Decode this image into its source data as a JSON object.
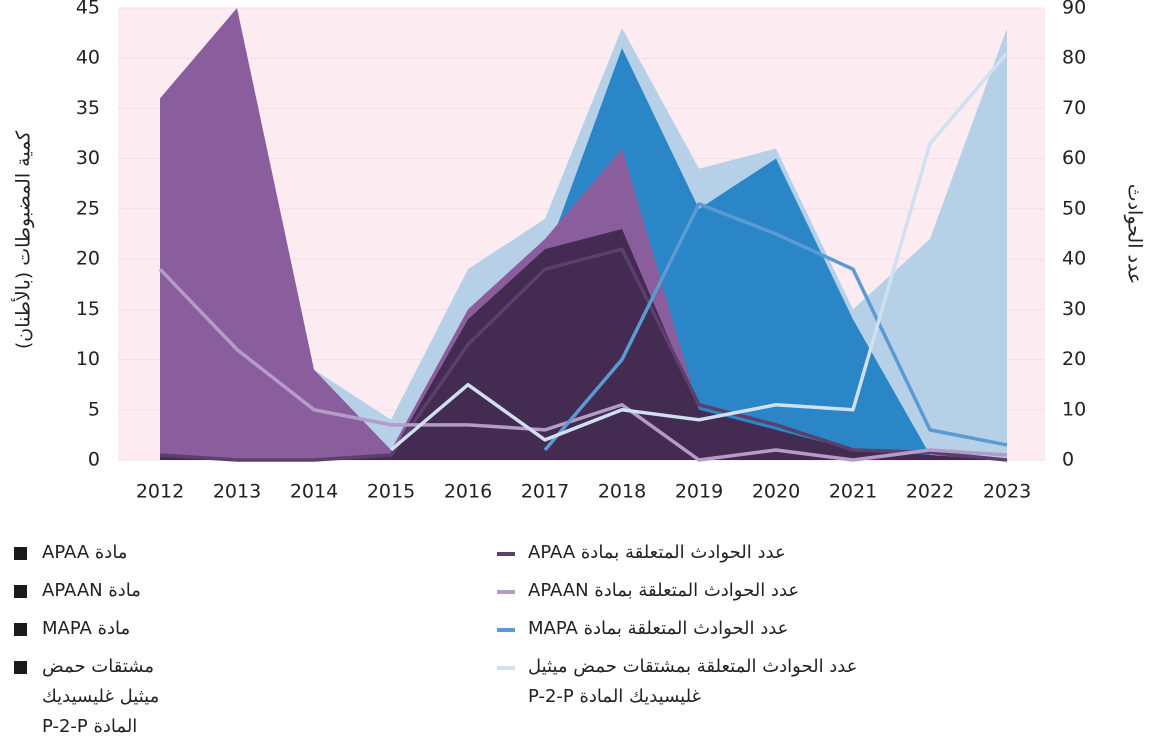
{
  "chart_data": {
    "type": "area",
    "y_label": "كمية المضبوطات (بالأطنان)",
    "y2_label": "عدد الحوادث",
    "categories": [
      "2012",
      "2013",
      "2014",
      "2015",
      "2016",
      "2017",
      "2018",
      "2019",
      "2020",
      "2021",
      "2022",
      "2023"
    ],
    "ylim": [
      0,
      45
    ],
    "yticks": [
      0,
      5,
      10,
      15,
      20,
      25,
      30,
      35,
      40,
      45
    ],
    "y2lim": [
      0,
      90
    ],
    "y2ticks": [
      0,
      10,
      20,
      30,
      40,
      50,
      60,
      70,
      80,
      90
    ],
    "series": [
      {
        "name": "مادة APAA",
        "type": "area",
        "color": "#432b52",
        "values": [
          0.5,
          0,
          0,
          0.5,
          14,
          21,
          23,
          5,
          3,
          1,
          0.5,
          0
        ]
      },
      {
        "name": "مادة APAAN",
        "type": "area",
        "color": "#8a5e9c",
        "values": [
          36,
          45,
          9,
          1,
          15,
          22,
          31,
          5,
          2,
          0.5,
          0,
          0
        ]
      },
      {
        "name": "مادة MAPA",
        "type": "area",
        "color": "#2a86c6",
        "values": [
          0,
          0,
          0,
          0,
          0,
          20,
          41,
          25,
          30,
          14,
          0.5,
          0
        ]
      },
      {
        "name": "مشتقات حمض ميثيل غليسيديك المادة P-2-P",
        "type": "area",
        "color": "#b5d0e7",
        "values": [
          0,
          0,
          9,
          4,
          19,
          24,
          43,
          29,
          31,
          15,
          22,
          43
        ]
      },
      {
        "name": "عدد الحوادث المتعلقة بمادة APAA",
        "type": "line",
        "axis": "y2",
        "color": "#5b3f6c",
        "values": [
          1,
          0,
          0,
          1,
          23,
          38,
          42,
          11,
          7,
          2,
          1.5,
          0
        ]
      },
      {
        "name": "عدد الحوادث المتعلقة بمادة APAAN",
        "type": "line",
        "axis": "y2",
        "color": "#b59bc7",
        "values": [
          38,
          22,
          10,
          7,
          7,
          6,
          11,
          0,
          2,
          0,
          2,
          1
        ]
      },
      {
        "name": "عدد الحوادث المتعلقة بمادة MAPA",
        "type": "line",
        "axis": "y2",
        "color": "#5b9ad2",
        "values": [
          null,
          null,
          null,
          null,
          null,
          2,
          20,
          51,
          45,
          38,
          6,
          3
        ]
      },
      {
        "name": "عدد الحوادث المتعلقة بمشتقات حمض ميثيل غليسيديك المادة P-2-P",
        "type": "line",
        "axis": "y2",
        "color": "#cfe0f1",
        "values": [
          null,
          null,
          null,
          2,
          15,
          4,
          10,
          8,
          11,
          10,
          63,
          81
        ]
      }
    ]
  }
}
